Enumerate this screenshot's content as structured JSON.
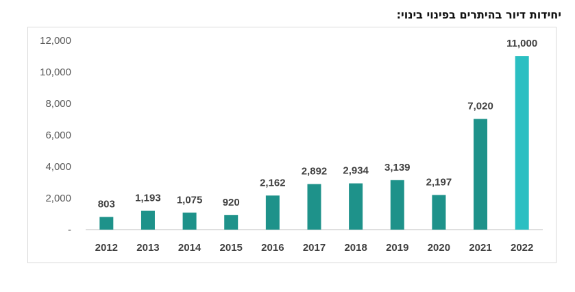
{
  "chart_data": {
    "type": "bar",
    "title": "יחידות דיור בהיתרים בפינוי בינוי:",
    "xlabel": "",
    "ylabel": "",
    "categories": [
      "2012",
      "2013",
      "2014",
      "2015",
      "2016",
      "2017",
      "2018",
      "2019",
      "2020",
      "2021",
      "2022"
    ],
    "values": [
      803,
      1193,
      1075,
      920,
      2162,
      2892,
      2934,
      3139,
      2197,
      7020,
      11000
    ],
    "data_labels": [
      "803",
      "1,193",
      "1,075",
      "920",
      "2,162",
      "2,892",
      "2,934",
      "3,139",
      "2,197",
      "7,020",
      "11,000"
    ],
    "ylim": [
      0,
      12000
    ],
    "yticks": [
      0,
      2000,
      4000,
      6000,
      8000,
      10000,
      12000
    ],
    "ytick_labels": [
      "-",
      "2,000",
      "4,000",
      "6,000",
      "8,000",
      "10,000",
      "12,000"
    ],
    "grid": false,
    "legend": "none",
    "colors": {
      "bar": "#1e928a",
      "highlight_bar": "#2bbfc2",
      "highlight_index": 10,
      "axis": "#bfbfbf"
    }
  }
}
